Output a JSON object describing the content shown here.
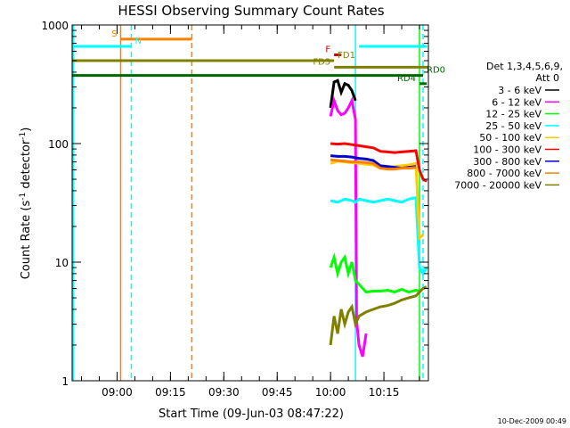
{
  "chart_data": {
    "type": "line",
    "title": "HESSI Observing Summary Count Rates",
    "xlabel": "Start Time (09-Jun-03 08:47:22)",
    "ylabel_main": "Count Rate (s",
    "ylabel_sup1": "-1",
    "ylabel_mid": " detector",
    "ylabel_sup2": "-1",
    "ylabel_end": ")",
    "yscale": "log",
    "ylim": [
      1,
      1000
    ],
    "xlim": [
      "08:47:22",
      "10:27:30"
    ],
    "y_ticks": [
      {
        "v": 1,
        "label": "1"
      },
      {
        "v": 10,
        "label": "10"
      },
      {
        "v": 100,
        "label": "100"
      },
      {
        "v": 1000,
        "label": "1000"
      }
    ],
    "x_ticks": [
      {
        "t": "09:00",
        "label": "09:00"
      },
      {
        "t": "09:15",
        "label": "09:15"
      },
      {
        "t": "09:30",
        "label": "09:30"
      },
      {
        "t": "09:45",
        "label": "09:45"
      },
      {
        "t": "10:00",
        "label": "10:00"
      },
      {
        "t": "10:15",
        "label": "10:15"
      }
    ],
    "legend": {
      "title_line1": "Det 1,3,4,5,6,9,",
      "title_line2": "Att 0",
      "placement": "right",
      "entries": [
        {
          "label": "3 - 6 keV",
          "color": "#000000"
        },
        {
          "label": "6 - 12 keV",
          "color": "#ff00ff"
        },
        {
          "label": "12 - 25 keV",
          "color": "#00ff00"
        },
        {
          "label": "25 - 50 keV",
          "color": "#00ffff"
        },
        {
          "label": "50 - 100 keV",
          "color": "#ffcc00"
        },
        {
          "label": "100 - 300 keV",
          "color": "#ff0000"
        },
        {
          "label": "300 - 800 keV",
          "color": "#0000cc"
        },
        {
          "label": "800 - 7000 keV",
          "color": "#ff8000"
        },
        {
          "label": "7000 - 20000 keV",
          "color": "#808000"
        }
      ]
    },
    "flags": [
      {
        "label": "S",
        "color": "#ff8000",
        "y": 760,
        "start": "09:01",
        "end": "09:21",
        "label_side": "left"
      },
      {
        "label": "N",
        "color": "#00ffff",
        "y": 660,
        "start": "08:47:22",
        "end": "09:04",
        "label_side": "right"
      },
      {
        "label": "F",
        "color": "#cc0000",
        "y": 560,
        "start": "10:01",
        "end": "10:03",
        "label_side": "left"
      },
      {
        "label": "FD1",
        "color": "#808000",
        "y": 500,
        "start": "08:47:22",
        "end": "10:01",
        "label_side": "right"
      },
      {
        "label": "FD3",
        "color": "#808000",
        "y": 440,
        "start": "10:01",
        "end": "10:27:30",
        "label_side": "left"
      },
      {
        "label": "RD0",
        "color": "#006600",
        "y": 375,
        "start": "08:47:22",
        "end": "10:26",
        "label_side": "right"
      },
      {
        "label": "RD4",
        "color": "#006600",
        "y": 320,
        "start": "10:25",
        "end": "10:27",
        "label_side": "left"
      }
    ],
    "extra_flags": [
      {
        "color": "#00ffff",
        "y": 660,
        "start": "10:08",
        "end": "10:27"
      }
    ],
    "vlines": [
      {
        "t": "08:47:40",
        "color": "#00ffff",
        "dash": false
      },
      {
        "t": "09:01",
        "color": "#ff8000",
        "dash": false
      },
      {
        "t": "09:04",
        "color": "#00ffff",
        "dash": true
      },
      {
        "t": "09:21",
        "color": "#ff8000",
        "dash": true
      },
      {
        "t": "10:07",
        "color": "#00ffff",
        "dash": false
      },
      {
        "t": "10:25",
        "color": "#00ff00",
        "dash": false
      },
      {
        "t": "10:26",
        "color": "#00ffff",
        "dash": true
      }
    ],
    "series": [
      {
        "name": "3 - 6 keV",
        "color": "#000000",
        "x": [
          "10:00",
          "10:01",
          "10:02",
          "10:03",
          "10:04",
          "10:05",
          "10:06",
          "10:07"
        ],
        "y": [
          200,
          330,
          340,
          270,
          320,
          310,
          280,
          230
        ]
      },
      {
        "name": "6 - 12 keV",
        "color": "#ff00ff",
        "x": [
          "10:00",
          "10:01",
          "10:02",
          "10:03",
          "10:04",
          "10:05",
          "10:06",
          "10:07",
          "10:07:20",
          "10:08",
          "10:09",
          "10:10"
        ],
        "y": [
          170,
          230,
          190,
          175,
          180,
          200,
          230,
          160,
          3.2,
          2.0,
          1.6,
          2.5
        ]
      },
      {
        "name": "12 - 25 keV",
        "color": "#00ff00",
        "x": [
          "10:00",
          "10:01",
          "10:02",
          "10:03",
          "10:04",
          "10:05",
          "10:06",
          "10:07",
          "10:08",
          "10:10",
          "10:12",
          "10:14",
          "10:16",
          "10:18",
          "10:20",
          "10:22",
          "10:24",
          "10:25"
        ],
        "y": [
          9,
          11,
          8,
          10,
          11,
          8,
          10,
          7,
          6.5,
          5.6,
          5.7,
          5.7,
          5.8,
          5.6,
          5.9,
          5.6,
          5.8,
          5.7
        ]
      },
      {
        "name": "25 - 50 keV",
        "color": "#00ffff",
        "x": [
          "10:00",
          "10:02",
          "10:04",
          "10:06",
          "10:07",
          "10:08",
          "10:10",
          "10:12",
          "10:14",
          "10:16",
          "10:18",
          "10:20",
          "10:22",
          "10:24",
          "10:25",
          "10:26",
          "10:27"
        ],
        "y": [
          33,
          32,
          34,
          33,
          32,
          34,
          33,
          32,
          33,
          34,
          33,
          32,
          34,
          35,
          9,
          8,
          9
        ]
      },
      {
        "name": "50 - 100 keV",
        "color": "#ffcc00",
        "x": [
          "10:00",
          "10:02",
          "10:04",
          "10:06",
          "10:08",
          "10:10",
          "10:12",
          "10:14",
          "10:16",
          "10:18",
          "10:20",
          "10:22",
          "10:24",
          "10:25",
          "10:26"
        ],
        "y": [
          68,
          71,
          70,
          69,
          68,
          67,
          66,
          62,
          63,
          64,
          65,
          66,
          68,
          16,
          17
        ]
      },
      {
        "name": "100 - 300 keV",
        "color": "#ff0000",
        "x": [
          "10:00",
          "10:02",
          "10:04",
          "10:06",
          "10:08",
          "10:10",
          "10:12",
          "10:14",
          "10:16",
          "10:18",
          "10:20",
          "10:22",
          "10:24",
          "10:25",
          "10:26",
          "10:27"
        ],
        "y": [
          100,
          99,
          100,
          98,
          96,
          94,
          92,
          86,
          85,
          84,
          85,
          86,
          87,
          60,
          50,
          48
        ]
      },
      {
        "name": "300 - 800 keV",
        "color": "#0000cc",
        "x": [
          "10:00",
          "10:02",
          "10:04",
          "10:06",
          "10:08",
          "10:10",
          "10:12",
          "10:14",
          "10:16",
          "10:18",
          "10:20",
          "10:22",
          "10:24"
        ],
        "y": [
          79,
          78,
          78,
          77,
          75,
          74,
          72,
          65,
          64,
          63,
          62,
          63,
          64
        ]
      },
      {
        "name": "800 - 7000 keV",
        "color": "#ff8000",
        "x": [
          "10:00",
          "10:02",
          "10:04",
          "10:06",
          "10:08",
          "10:10",
          "10:12",
          "10:14",
          "10:16",
          "10:18",
          "10:20",
          "10:22",
          "10:24"
        ],
        "y": [
          73,
          72,
          71,
          70,
          70,
          69,
          68,
          62,
          61,
          61,
          62,
          62,
          63
        ]
      },
      {
        "name": "7000 - 20000 keV",
        "color": "#808000",
        "x": [
          "10:00",
          "10:01",
          "10:02",
          "10:03",
          "10:04",
          "10:05",
          "10:06",
          "10:07",
          "10:08",
          "10:10",
          "10:12",
          "10:14",
          "10:16",
          "10:18",
          "10:20",
          "10:22",
          "10:24",
          "10:26",
          "10:27"
        ],
        "y": [
          2.0,
          3.5,
          2.5,
          4.0,
          3.0,
          3.8,
          4.2,
          3.0,
          3.5,
          3.8,
          4.0,
          4.2,
          4.3,
          4.5,
          4.8,
          5.0,
          5.2,
          6.0,
          6.2
        ]
      }
    ],
    "grid": false
  },
  "footer": {
    "date": "10-Dec-2009 00:49"
  }
}
